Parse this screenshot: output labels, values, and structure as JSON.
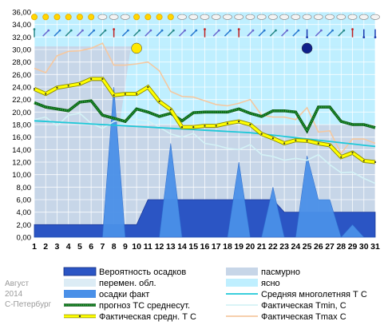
{
  "caption": {
    "month": "Август",
    "year": "2014",
    "city": "С-Петербург"
  },
  "colors": {
    "probability": "#2b55c4",
    "overcast": "#c7d6e8",
    "variable": "#dcecf5",
    "clear": "#bfefff",
    "precip": "#4a90e8",
    "mean_normal": "#1ec8d8",
    "forecast": "#2aa33a",
    "tmin": "#d4f2f6",
    "tmean": "#ffff00",
    "tmax": "#f5c8a0"
  },
  "chart_data": {
    "type": "line",
    "x": [
      1,
      2,
      3,
      4,
      5,
      6,
      7,
      8,
      9,
      10,
      11,
      12,
      13,
      14,
      15,
      16,
      17,
      18,
      19,
      20,
      21,
      22,
      23,
      24,
      25,
      26,
      27,
      28,
      29,
      30,
      31
    ],
    "xlim": [
      1,
      31
    ],
    "ylim": [
      0,
      36
    ],
    "ytick_step": 2,
    "grid": true,
    "background": {
      "overcast_days": [
        1,
        2,
        3,
        4,
        5,
        6,
        7,
        8,
        9,
        10,
        11,
        12,
        13,
        14,
        15,
        16,
        17,
        18,
        19,
        20,
        21,
        22,
        23,
        24,
        25,
        26,
        27,
        28,
        29,
        30,
        31
      ],
      "clear_days": [
        9,
        10,
        11,
        12,
        13,
        14,
        15,
        16,
        17,
        18,
        19,
        20,
        21,
        22,
        23,
        24,
        25,
        26,
        27,
        28,
        29,
        30,
        31
      ],
      "moons": [
        {
          "day": 10,
          "phase": "full",
          "color": "#ffe800"
        },
        {
          "day": 25,
          "phase": "new",
          "color": "#10208a"
        }
      ]
    },
    "series": [
      {
        "name": "Вероятность осадков",
        "kind": "area",
        "values": [
          2,
          2,
          2,
          2,
          2,
          2,
          2,
          2,
          2,
          2,
          6,
          6,
          6,
          6,
          6,
          6,
          6,
          6,
          6,
          6,
          6,
          6,
          4,
          4,
          4,
          4,
          4,
          4,
          4,
          4,
          4
        ]
      },
      {
        "name": "осадки факт",
        "kind": "area",
        "values": [
          0,
          0,
          0,
          0,
          0,
          0,
          0,
          24,
          0,
          0,
          0,
          0,
          15,
          0,
          0,
          0,
          0,
          0,
          12,
          0,
          0,
          8,
          0,
          0,
          13,
          6,
          6,
          0,
          2,
          0,
          0
        ]
      },
      {
        "name": "Средняя многолетняя Т С",
        "kind": "line",
        "values": [
          18.6,
          18.5,
          18.4,
          18.3,
          18.2,
          18.1,
          18.0,
          17.9,
          17.8,
          17.7,
          17.6,
          17.5,
          17.4,
          17.3,
          17.2,
          17.1,
          17.0,
          16.9,
          16.8,
          16.7,
          16.5,
          16.3,
          16.1,
          15.9,
          15.7,
          15.5,
          15.3,
          15.1,
          14.9,
          14.7,
          14.5
        ]
      },
      {
        "name": "прогноз ТС среднесут.",
        "kind": "dotted",
        "values": [
          21.5,
          20.8,
          20.5,
          20.2,
          21.6,
          21.8,
          19.5,
          19.0,
          18.5,
          20.5,
          20.0,
          19.3,
          19.8,
          18.6,
          19.9,
          20.0,
          20.0,
          20.0,
          20.5,
          19.8,
          19.3,
          20.2,
          20.2,
          20.0,
          17.0,
          20.8,
          20.8,
          18.5,
          18.0,
          18.0,
          17.5
        ]
      },
      {
        "name": "Фактическая Tmin, С",
        "kind": "line",
        "values": [
          18.8,
          19.2,
          17.8,
          19.5,
          19.8,
          18.2,
          17.4,
          18.5,
          19.0,
          18.8,
          18.6,
          17.6,
          16.5,
          16.0,
          16.6,
          15.0,
          14.7,
          14.2,
          14.0,
          14.8,
          13.2,
          12.9,
          12.3,
          12.6,
          12.3,
          13.2,
          11.6,
          10.3,
          10.4,
          9.4,
          8.6
        ]
      },
      {
        "name": "Фактическая средн. Т С",
        "kind": "thick",
        "values": [
          23.7,
          22.9,
          23.9,
          24.2,
          24.5,
          25.3,
          25.3,
          22.7,
          22.9,
          22.9,
          24.0,
          21.7,
          20.4,
          17.6,
          17.6,
          17.8,
          17.8,
          18.2,
          18.5,
          18.0,
          16.5,
          15.8,
          15.0,
          15.5,
          15.4,
          15.0,
          14.7,
          12.8,
          13.5,
          12.2,
          12.0
        ]
      },
      {
        "name": "Фактическая Tmax C",
        "kind": "line",
        "values": [
          27.0,
          26.3,
          29.0,
          29.7,
          29.8,
          30.2,
          31.0,
          27.5,
          27.5,
          27.7,
          28.0,
          26.6,
          23.3,
          22.5,
          22.4,
          21.8,
          21.2,
          21.0,
          21.4,
          22.0,
          19.5,
          19.2,
          19.2,
          18.8,
          20.7,
          16.8,
          17.0,
          13.4,
          15.7,
          15.7,
          15.0
        ]
      }
    ]
  },
  "legend": [
    {
      "label": "Вероятность осадков",
      "kind": "box-dark"
    },
    {
      "label": "пасмурно",
      "kind": "box-overcast"
    },
    {
      "label": "перемен. обл.",
      "kind": "box-variable"
    },
    {
      "label": "ясно",
      "kind": "box-clear"
    },
    {
      "label": "осадки факт",
      "kind": "box-precip"
    },
    {
      "label": "Средняя многолетняя Т С",
      "kind": "line-normal"
    },
    {
      "label": "прогноз ТС среднесут.",
      "kind": "line-forecast"
    },
    {
      "label": "Фактическая Tmin, С",
      "kind": "line-tmin"
    },
    {
      "label": "Фактическая средн. Т С",
      "kind": "line-tmean"
    },
    {
      "label": "Фактическая Tmax C",
      "kind": "line-tmax"
    }
  ],
  "weather_icons": [
    "sun",
    "sun",
    "sun",
    "sun",
    "sun",
    "sun",
    "cloud",
    "cloud",
    "cloud",
    "sun",
    "sun",
    "sun",
    "sun",
    "cloud",
    "cloud",
    "cloud",
    "cloud",
    "cloud",
    "cloud",
    "cloud",
    "cloud",
    "cloud",
    "cloud",
    "cloud",
    "cloud",
    "cloud",
    "cloud",
    "cloud",
    "cloud",
    "cloud",
    "cloud"
  ],
  "wind_icons": [
    "arrow-up",
    "arrow-ne",
    "arrow-ne",
    "arrow-ne",
    "arrow-ne",
    "arrow-ne",
    "arrow-ne",
    "arrow-n",
    "arrow-ne",
    "arrow-ne",
    "arrow-ne",
    "arrow-ne",
    "arrow-ne",
    "arrow-ne",
    "arrow-ne",
    "arrow-n",
    "arrow-ne",
    "arrow-ne",
    "arrow-n",
    "arrow-ne",
    "arrow-ne",
    "arrow-ne",
    "arrow-ne",
    "arrow-ne",
    "arrow-s",
    "arrow-ne",
    "arrow-ne",
    "arrow-ne",
    "arrow-n",
    "arrow-s",
    "arrow-s"
  ]
}
